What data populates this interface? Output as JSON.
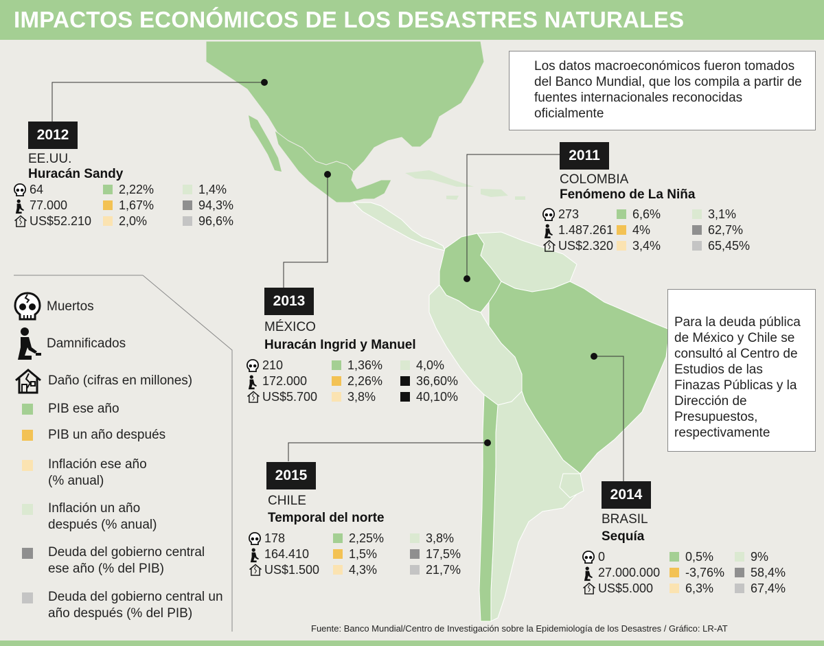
{
  "title": "IMPACTOS ECONÓMICOS DE LOS DESASTRES NATURALES",
  "notes": {
    "data_source": "Los datos macroeconómicos fueron tomados del Banco Mundial, que los compila a partir de fuentes internacionales reconocidas oficialmente",
    "public_debt": "Para la deuda pública de México y Chile se consultó al Centro de Estudios de las Finazas Públicas y la Dirección de Presupuestos, respectivamente"
  },
  "legend": {
    "deaths": "Muertos",
    "affected": "Damnificados",
    "damage": "Daño (cifras en millones)",
    "gdp_year": "PIB ese año",
    "gdp_next": "PIB un año después",
    "inflation_year": "Inflación ese año (% anual)",
    "inflation_next": "Inflación un año después (% anual)",
    "debt_year": "Deuda del gobierno central ese año (% del PIB)",
    "debt_next": "Deuda del gobierno central un año después (% del PIB)"
  },
  "colors": {
    "gdp_year": "#a4cf93",
    "gdp_next": "#f3c254",
    "inflation_year": "#fbe3b1",
    "inflation_next": "#dbe9d1",
    "debt_year": "#8f8f8f",
    "debt_next": "#c4c4c4",
    "debt_black": "#111111",
    "map_green": "#a4cf93",
    "map_light": "#d8e8cf",
    "sea": "#ecebe6"
  },
  "events": {
    "usa": {
      "year": "2012",
      "country": "EE.UU.",
      "event": "Huracán Sandy",
      "deaths": "64",
      "affected": "77.000",
      "damage": "US$52.210",
      "gdp_year": "2,22%",
      "gdp_next": "1,67%",
      "inflation_year": "2,0%",
      "inflation_next": "1,4%",
      "debt_year": "94,3%",
      "debt_next": "96,6%"
    },
    "colombia": {
      "year": "2011",
      "country": "COLOMBIA",
      "event": "Fenómeno de La Niña",
      "deaths": "273",
      "affected": "1.487.261",
      "damage": "US$2.320",
      "gdp_year": "6,6%",
      "gdp_next": "4%",
      "inflation_year": "3,4%",
      "inflation_next": "3,1%",
      "debt_year": "62,7%",
      "debt_next": "65,45%"
    },
    "mexico": {
      "year": "2013",
      "country": "MÉXICO",
      "event": "Huracán Ingrid y Manuel",
      "deaths": "210",
      "affected": "172.000",
      "damage": "US$5.700",
      "gdp_year": "1,36%",
      "gdp_next": "2,26%",
      "inflation_year": "3,8%",
      "inflation_next": "4,0%",
      "debt_year": "36,60%",
      "debt_next": "40,10%"
    },
    "chile": {
      "year": "2015",
      "country": "CHILE",
      "event": "Temporal del norte",
      "deaths": "178",
      "affected": "164.410",
      "damage": "US$1.500",
      "gdp_year": "2,25%",
      "gdp_next": "1,5%",
      "inflation_year": "4,3%",
      "inflation_next": "3,8%",
      "debt_year": "17,5%",
      "debt_next": "21,7%"
    },
    "brasil": {
      "year": "2014",
      "country": "BRASIL",
      "event": "Sequía",
      "deaths": "0",
      "affected": "27.000.000",
      "damage": "US$5.000",
      "gdp_year": "0,5%",
      "gdp_next": "-3,76%",
      "inflation_year": "6,3%",
      "inflation_next": "9%",
      "debt_year": "58,4%",
      "debt_next": "67,4%"
    }
  },
  "source": "Fuente: Banco Mundial/Centro de Investigación sobre la Epidemiología de los Desastres / Gráfico: LR-AT"
}
